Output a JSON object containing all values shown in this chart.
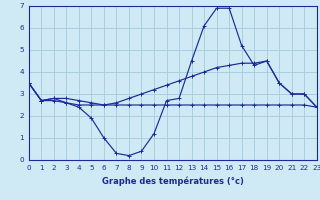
{
  "xlabel": "Graphe des températures (°c)",
  "background_color": "#d0eaf5",
  "grid_color": "#a8cfe0",
  "line_color": "#1a2a9a",
  "x_hours": [
    0,
    1,
    2,
    3,
    4,
    5,
    6,
    7,
    8,
    9,
    10,
    11,
    12,
    13,
    14,
    15,
    16,
    17,
    18,
    19,
    20,
    21,
    22,
    23
  ],
  "series1": [
    3.5,
    2.7,
    2.8,
    2.6,
    2.4,
    1.9,
    1.0,
    0.3,
    0.2,
    0.4,
    1.2,
    2.7,
    2.8,
    4.5,
    6.1,
    6.9,
    6.9,
    5.2,
    4.3,
    4.5,
    3.5,
    3.0,
    3.0,
    2.4
  ],
  "series2": [
    3.5,
    2.7,
    2.8,
    2.8,
    2.7,
    2.6,
    2.5,
    2.6,
    2.8,
    3.0,
    3.2,
    3.4,
    3.6,
    3.8,
    4.0,
    4.2,
    4.3,
    4.4,
    4.4,
    4.5,
    3.5,
    3.0,
    3.0,
    2.4
  ],
  "series3": [
    3.5,
    2.7,
    2.7,
    2.6,
    2.5,
    2.5,
    2.5,
    2.5,
    2.5,
    2.5,
    2.5,
    2.5,
    2.5,
    2.5,
    2.5,
    2.5,
    2.5,
    2.5,
    2.5,
    2.5,
    2.5,
    2.5,
    2.5,
    2.4
  ],
  "ylim": [
    0,
    7
  ],
  "xlim": [
    0,
    23
  ],
  "yticks": [
    0,
    1,
    2,
    3,
    4,
    5,
    6,
    7
  ],
  "xticks": [
    0,
    1,
    2,
    3,
    4,
    5,
    6,
    7,
    8,
    9,
    10,
    11,
    12,
    13,
    14,
    15,
    16,
    17,
    18,
    19,
    20,
    21,
    22,
    23
  ]
}
